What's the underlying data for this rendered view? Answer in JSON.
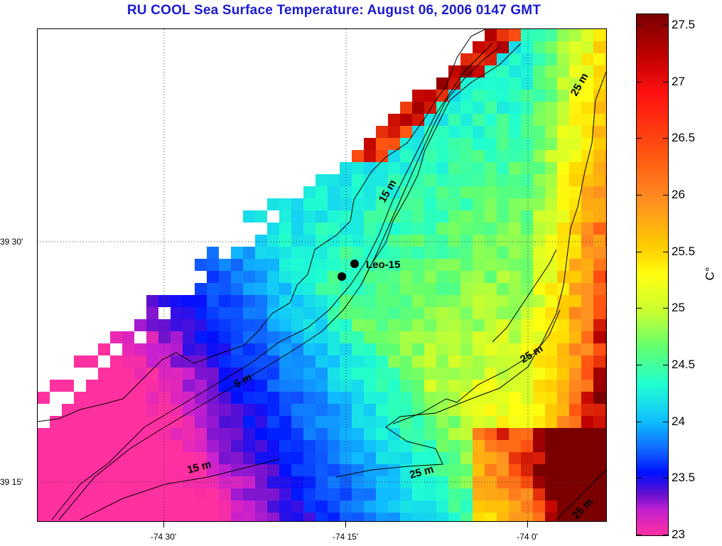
{
  "title": "RU COOL  Sea Surface Temperature:  August 06, 2006 0147 GMT",
  "x_axis": {
    "ticks": [
      {
        "label": "-74 30'"
      },
      {
        "label": "-74 15'"
      },
      {
        "label": "-74 0'"
      }
    ]
  },
  "y_axis": {
    "ticks": [
      {
        "label": "39 30'"
      },
      {
        "label": "39 15'"
      }
    ]
  },
  "colorbar": {
    "unit": "C°",
    "labels": [
      "27.5",
      "27",
      "26.5",
      "26",
      "25.5",
      "25",
      "24.5",
      "24",
      "23.5",
      "23"
    ],
    "min": 23,
    "max": 27.6
  },
  "station": {
    "label": "Leo-15",
    "marker_color": "#000000"
  },
  "contour_labels": [
    "25 m",
    "15 m",
    "5 m",
    "15 m",
    "25 m",
    "25 m",
    "25 m"
  ],
  "colors": {
    "title": "#1b1bd0",
    "coastline": "#000000",
    "land": "#ffffff"
  }
}
